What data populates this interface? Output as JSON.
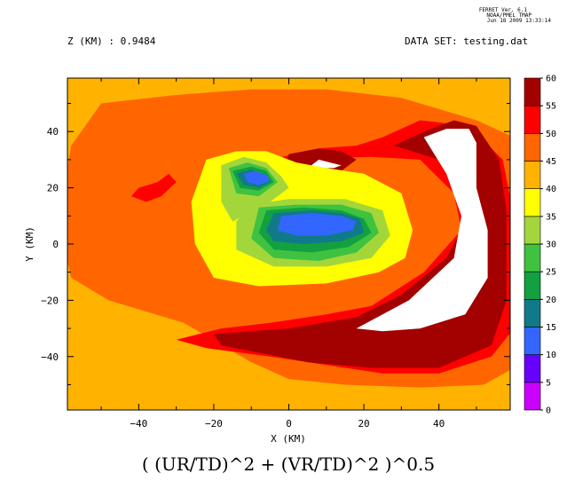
{
  "header": {
    "ferret_version": "FERRET Ver. 6.1",
    "organization": "NOAA/PMEL TMAP",
    "timestamp": "Jun 18 2009 13:33:14",
    "z_label": "Z (KM) : 0.9484",
    "dataset_label": "DATA SET: testing.dat"
  },
  "chart_data": {
    "type": "heatmap",
    "title": "( (UR/TD)^2 + (VR/TD)^2 )^0.5",
    "xlabel": "X (KM)",
    "ylabel": "Y (KM)",
    "xlim": [
      -59,
      59
    ],
    "ylim": [
      -59,
      59
    ],
    "x_ticks": [
      -40,
      -20,
      0,
      20,
      40
    ],
    "x_tick_labels": [
      "−40",
      "−20",
      "0",
      "20",
      "40"
    ],
    "y_ticks": [
      -40,
      -20,
      0,
      20,
      40
    ],
    "y_tick_labels": [
      "−40",
      "−20",
      "0",
      "20",
      "40"
    ],
    "levels": [
      0,
      5,
      10,
      15,
      20,
      25,
      30,
      35,
      40,
      45,
      50,
      55,
      60
    ],
    "level_labels": [
      "0",
      "5",
      "10",
      "15",
      "20",
      "25",
      "30",
      "35",
      "40",
      "45",
      "50",
      "55",
      "60"
    ],
    "level_colors": [
      "#cc00ff",
      "#6600ff",
      "#3366ff",
      "#107a8a",
      "#12a040",
      "#3fc23f",
      "#a3d63a",
      "#ffff00",
      "#ffb300",
      "#ff6600",
      "#ff0000",
      "#a30000"
    ],
    "regions": [
      {
        "level": "40-45",
        "points": [
          [
            -60,
            60
          ],
          [
            -60,
            -60
          ],
          [
            60,
            -60
          ],
          [
            60,
            60
          ]
        ]
      },
      {
        "level": "45-50",
        "points": [
          [
            -50,
            50
          ],
          [
            -30,
            53
          ],
          [
            -10,
            55
          ],
          [
            10,
            55
          ],
          [
            30,
            52
          ],
          [
            50,
            44
          ],
          [
            60,
            38
          ],
          [
            60,
            -44
          ],
          [
            52,
            -50
          ],
          [
            35,
            -51
          ],
          [
            15,
            -50
          ],
          [
            0,
            -48
          ],
          [
            -10,
            -42
          ],
          [
            -28,
            -28
          ],
          [
            -48,
            -20
          ],
          [
            -58,
            -12
          ],
          [
            -60,
            0
          ],
          [
            -60,
            20
          ],
          [
            -58,
            35
          ]
        ]
      },
      {
        "level": "50-55",
        "points": [
          [
            -5,
            30
          ],
          [
            8,
            34
          ],
          [
            18,
            35
          ],
          [
            25,
            38
          ],
          [
            35,
            44
          ],
          [
            48,
            42
          ],
          [
            57,
            30
          ],
          [
            60,
            10
          ],
          [
            60,
            -30
          ],
          [
            54,
            -40
          ],
          [
            40,
            -46
          ],
          [
            25,
            -46
          ],
          [
            10,
            -43
          ],
          [
            -5,
            -40
          ],
          [
            -22,
            -37
          ],
          [
            -30,
            -34
          ],
          [
            -18,
            -30
          ],
          [
            -5,
            -28
          ],
          [
            10,
            -25
          ],
          [
            22,
            -22
          ],
          [
            36,
            -10
          ],
          [
            46,
            5
          ],
          [
            44,
            18
          ],
          [
            35,
            30
          ],
          [
            22,
            31
          ]
        ]
      },
      {
        "level": "50-55",
        "points": [
          [
            -40,
            20
          ],
          [
            -35,
            22
          ],
          [
            -32,
            25
          ],
          [
            -30,
            22
          ],
          [
            -34,
            17
          ],
          [
            -38,
            15
          ],
          [
            -42,
            17
          ]
        ]
      },
      {
        "level": "55-60",
        "points": [
          [
            0,
            32
          ],
          [
            8,
            34
          ],
          [
            14,
            33
          ],
          [
            18,
            30
          ],
          [
            14,
            26
          ],
          [
            4,
            25
          ],
          [
            -1,
            28
          ]
        ]
      },
      {
        "level": "55-60",
        "points": [
          [
            28,
            35
          ],
          [
            36,
            40
          ],
          [
            44,
            44
          ],
          [
            50,
            42
          ],
          [
            56,
            30
          ],
          [
            58,
            12
          ],
          [
            58,
            -20
          ],
          [
            54,
            -36
          ],
          [
            40,
            -44
          ],
          [
            22,
            -44
          ],
          [
            5,
            -42
          ],
          [
            -18,
            -36
          ],
          [
            -20,
            -32
          ],
          [
            0,
            -30
          ],
          [
            18,
            -26
          ],
          [
            30,
            -18
          ],
          [
            42,
            -5
          ],
          [
            48,
            10
          ],
          [
            46,
            22
          ],
          [
            40,
            30
          ]
        ]
      },
      {
        "level": "60+",
        "points": [
          [
            8,
            30
          ],
          [
            11,
            29
          ],
          [
            14,
            28
          ],
          [
            12,
            27
          ],
          [
            8,
            27
          ],
          [
            6,
            28
          ]
        ]
      },
      {
        "level": "60+",
        "points": [
          [
            36,
            38
          ],
          [
            42,
            41
          ],
          [
            48,
            41
          ],
          [
            50,
            36
          ],
          [
            50,
            20
          ],
          [
            53,
            5
          ],
          [
            53,
            -12
          ],
          [
            47,
            -25
          ],
          [
            35,
            -30
          ],
          [
            25,
            -31
          ],
          [
            18,
            -30
          ],
          [
            32,
            -20
          ],
          [
            44,
            -5
          ],
          [
            46,
            10
          ],
          [
            42,
            25
          ]
        ]
      },
      {
        "level": "35-40",
        "points": [
          [
            -22,
            30
          ],
          [
            -14,
            33
          ],
          [
            -6,
            33
          ],
          [
            2,
            29
          ],
          [
            10,
            27
          ],
          [
            20,
            25
          ],
          [
            30,
            18
          ],
          [
            33,
            5
          ],
          [
            31,
            -5
          ],
          [
            24,
            -10
          ],
          [
            10,
            -14
          ],
          [
            -8,
            -15
          ],
          [
            -20,
            -12
          ],
          [
            -25,
            0
          ],
          [
            -26,
            15
          ]
        ]
      },
      {
        "level": "30-35",
        "points": [
          [
            -18,
            28
          ],
          [
            -12,
            31
          ],
          [
            -6,
            29
          ],
          [
            -2,
            24
          ],
          [
            0,
            20
          ],
          [
            -5,
            15
          ],
          [
            -15,
            8
          ],
          [
            -18,
            15
          ]
        ]
      },
      {
        "level": "30-35",
        "points": [
          [
            -10,
            14
          ],
          [
            0,
            16
          ],
          [
            15,
            16
          ],
          [
            25,
            12
          ],
          [
            27,
            3
          ],
          [
            22,
            -5
          ],
          [
            10,
            -8
          ],
          [
            -4,
            -8
          ],
          [
            -14,
            -2
          ],
          [
            -14,
            8
          ]
        ]
      },
      {
        "level": "25-30",
        "points": [
          [
            -16,
            27
          ],
          [
            -11,
            29
          ],
          [
            -6,
            27
          ],
          [
            -3,
            22
          ],
          [
            -8,
            17
          ],
          [
            -14,
            18
          ]
        ]
      },
      {
        "level": "25-30",
        "points": [
          [
            -8,
            13
          ],
          [
            2,
            14
          ],
          [
            14,
            14
          ],
          [
            22,
            11
          ],
          [
            24,
            4
          ],
          [
            18,
            -3
          ],
          [
            8,
            -6
          ],
          [
            -4,
            -5
          ],
          [
            -10,
            2
          ]
        ]
      },
      {
        "level": "20-25",
        "points": [
          [
            -15,
            26
          ],
          [
            -10,
            27.5
          ],
          [
            -6,
            26
          ],
          [
            -4,
            22
          ],
          [
            -8,
            19
          ],
          [
            -13,
            20
          ]
        ]
      },
      {
        "level": "20-25",
        "points": [
          [
            -6,
            12
          ],
          [
            4,
            13
          ],
          [
            14,
            12
          ],
          [
            20,
            9
          ],
          [
            22,
            4
          ],
          [
            16,
            -1
          ],
          [
            6,
            -3
          ],
          [
            -4,
            -2
          ],
          [
            -8,
            4
          ]
        ]
      },
      {
        "level": "15-20",
        "points": [
          [
            -14,
            25
          ],
          [
            -10,
            26.5
          ],
          [
            -7,
            25
          ],
          [
            -5,
            22
          ],
          [
            -8,
            20
          ],
          [
            -12,
            21
          ]
        ]
      },
      {
        "level": "15-20",
        "points": [
          [
            -4,
            11
          ],
          [
            6,
            12
          ],
          [
            14,
            11
          ],
          [
            19,
            9
          ],
          [
            20,
            4
          ],
          [
            14,
            1
          ],
          [
            4,
            0
          ],
          [
            -4,
            1
          ],
          [
            -6,
            5
          ]
        ]
      },
      {
        "level": "10-15",
        "points": [
          [
            -12,
            25
          ],
          [
            -9,
            26
          ],
          [
            -6,
            24.5
          ],
          [
            -5,
            22.5
          ],
          [
            -8,
            21
          ],
          [
            -11,
            22
          ]
        ]
      },
      {
        "level": "10-15",
        "points": [
          [
            -2,
            10
          ],
          [
            6,
            11
          ],
          [
            14,
            10
          ],
          [
            18,
            8
          ],
          [
            17,
            5
          ],
          [
            10,
            3
          ],
          [
            2,
            3
          ],
          [
            -3,
            5
          ]
        ]
      }
    ]
  }
}
